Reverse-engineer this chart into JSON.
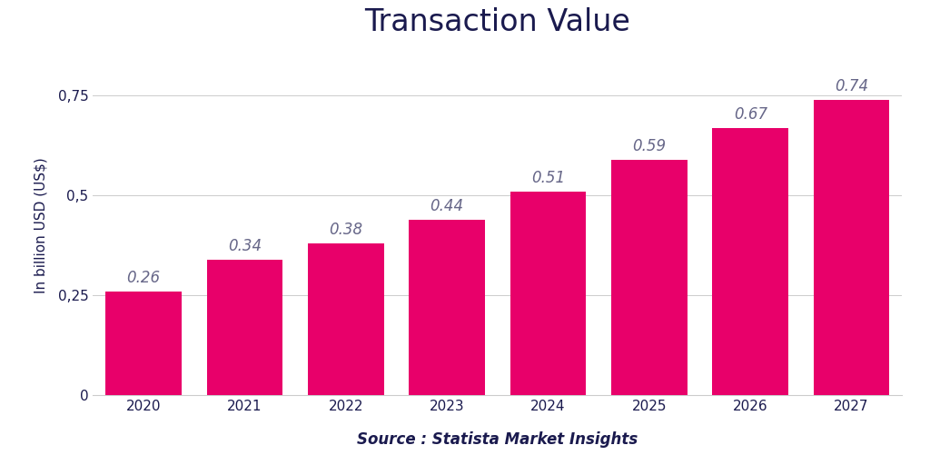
{
  "title": "Transaction Value",
  "xlabel": "Source : Statista Market Insights",
  "ylabel": "In billion USD (US$)",
  "years": [
    "2020",
    "2021",
    "2022",
    "2023",
    "2024",
    "2025",
    "2026",
    "2027"
  ],
  "values": [
    0.26,
    0.34,
    0.38,
    0.44,
    0.51,
    0.59,
    0.67,
    0.74
  ],
  "bar_color": "#E8006A",
  "label_color": "#666688",
  "title_color": "#1a1a4e",
  "axis_label_color": "#1a1a4e",
  "source_color": "#1a1a4e",
  "background_color": "#ffffff",
  "ylim": [
    0,
    0.85
  ],
  "yticks": [
    0,
    0.25,
    0.5,
    0.75
  ],
  "ytick_labels": [
    "0",
    "0,25",
    "0,5",
    "0,75"
  ],
  "title_fontsize": 24,
  "label_fontsize": 11,
  "bar_label_fontsize": 12,
  "source_fontsize": 12,
  "axis_label_fontsize": 11,
  "bar_width": 0.75
}
